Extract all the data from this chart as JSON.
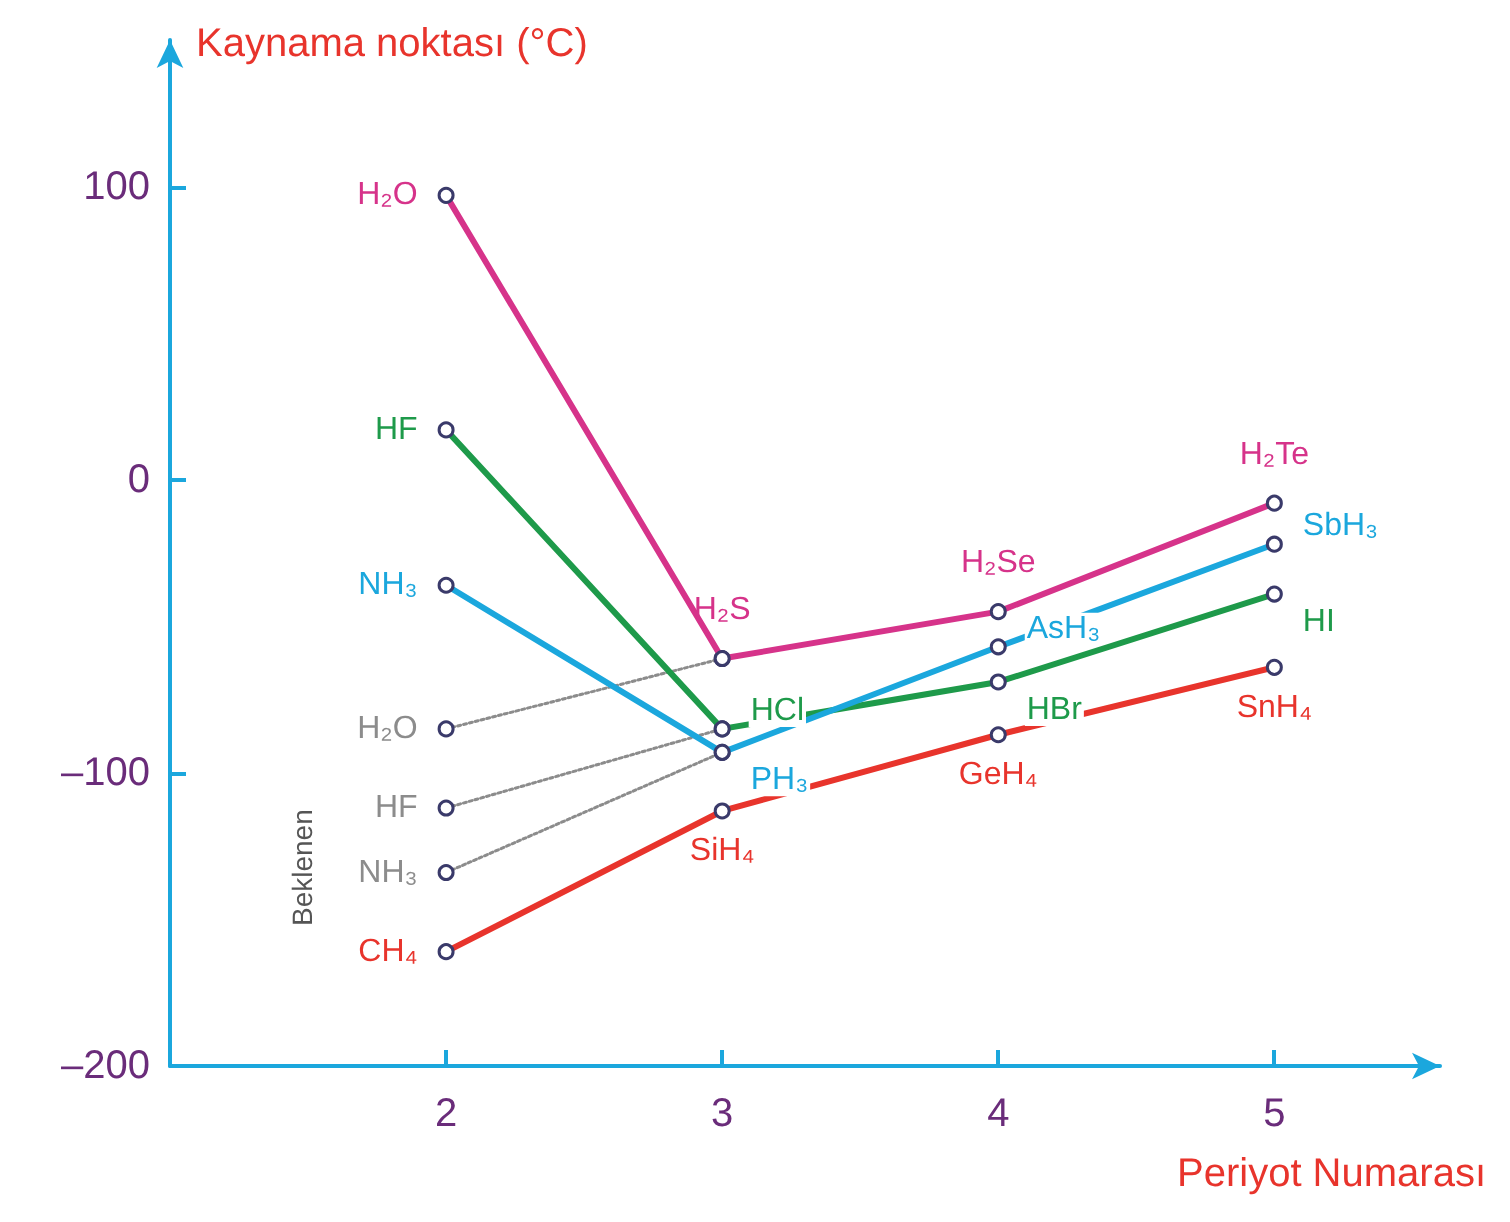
{
  "chart_data": {
    "type": "line",
    "xlabel": "Periyot Numarası",
    "ylabel": "Kaynama noktası (°C)",
    "x": [
      2,
      3,
      4,
      5
    ],
    "xlim": [
      1,
      5.6
    ],
    "xticks": [
      2,
      3,
      4,
      5
    ],
    "ylim": [
      -200,
      150
    ],
    "yticks": [
      {
        "value": -200,
        "label": "–200"
      },
      {
        "value": -100,
        "label": "–100"
      },
      0,
      100
    ],
    "grid": false,
    "marker": "circle",
    "line_style": "solid",
    "annotations": [
      "Beklenen"
    ],
    "series": [
      {
        "color": "#d6338a",
        "values": [
          97,
          -61,
          -45,
          -8
        ],
        "value_labels": [
          "H₂O",
          "H₂S",
          "H₂Se",
          "H₂Te"
        ]
      },
      {
        "color": "#1e9a4a",
        "values": [
          17,
          -85,
          -69,
          -39
        ],
        "value_labels": [
          "HF",
          "HCl",
          "HBr",
          "HI"
        ]
      },
      {
        "color": "#1ba7dd",
        "values": [
          -36,
          -93,
          -57,
          -22
        ],
        "value_labels": [
          "NH₃",
          "PH₃",
          "AsH₃",
          "SbH₃"
        ]
      },
      {
        "color": "#e8342c",
        "values": [
          -161,
          -113,
          -87,
          -64
        ],
        "value_labels": [
          "CH₄",
          "SiH₄",
          "GeH₄",
          "SnH₄"
        ]
      },
      {
        "color": "#8c8c8c",
        "line_style": "dotted",
        "values": [
          -85,
          -61,
          null,
          null
        ],
        "value_labels": [
          "H₂O",
          null,
          null,
          null
        ]
      },
      {
        "color": "#8c8c8c",
        "line_style": "dotted",
        "values": [
          -112,
          -85,
          null,
          null
        ],
        "value_labels": [
          "HF",
          null,
          null,
          null
        ]
      },
      {
        "color": "#8c8c8c",
        "line_style": "dotted",
        "values": [
          -134,
          -93,
          null,
          null
        ],
        "value_labels": [
          "NH₃",
          null,
          null,
          null
        ]
      }
    ]
  }
}
